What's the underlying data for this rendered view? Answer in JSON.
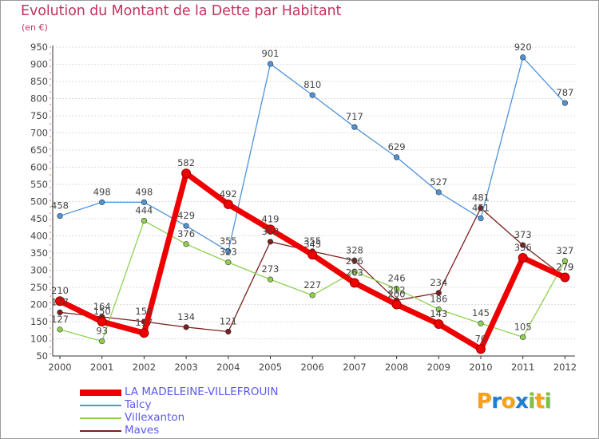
{
  "header": {
    "title": "Evolution du Montant de la Dette par Habitant",
    "subtitle": "(en €)"
  },
  "brand": {
    "letters": [
      "P",
      "r",
      "o",
      "x",
      "i",
      "t",
      "i"
    ],
    "colors": [
      "#f5a313",
      "#1e7fd1",
      "#f5a313",
      "#1e7fd1",
      "#7cc23b",
      "#f5a313",
      "#7cc23b"
    ]
  },
  "chart_data": {
    "type": "line",
    "x": [
      "2000",
      "2001",
      "2002",
      "2003",
      "2004",
      "2005",
      "2006",
      "2007",
      "2008",
      "2009",
      "2010",
      "2011",
      "2012"
    ],
    "ylim": [
      50,
      950
    ],
    "yticks": [
      50,
      100,
      150,
      200,
      250,
      300,
      350,
      400,
      450,
      500,
      550,
      600,
      650,
      700,
      750,
      800,
      850,
      900,
      950
    ],
    "grid": "horizontal dashed",
    "legend_position": "bottom-left",
    "series": [
      {
        "name": "LA MADELEINE-VILLEFROUIN",
        "color": "#ee0000",
        "values": [
          210,
          150,
          117,
          582,
          492,
          419,
          345,
          263,
          200,
          143,
          70,
          336,
          279
        ],
        "labels": [
          "210",
          "150",
          "117",
          "582",
          "492",
          "419",
          "345",
          "263",
          "200",
          "143",
          "70",
          "336",
          "279"
        ]
      },
      {
        "name": "Talcy",
        "color": "#4f93d8",
        "values": [
          458,
          498,
          498,
          429,
          355,
          901,
          810,
          717,
          629,
          527,
          451,
          920,
          787
        ],
        "labels": [
          "458",
          "498",
          "498",
          "429",
          "355",
          "901",
          "810",
          "717",
          "629",
          "527",
          "451",
          "920",
          "787"
        ]
      },
      {
        "name": "Villexanton",
        "color": "#8fd14f",
        "values": [
          127,
          93,
          444,
          376,
          323,
          273,
          227,
          296,
          246,
          186,
          145,
          105,
          327
        ],
        "labels": [
          "127",
          "93",
          "444",
          "376",
          "323",
          "273",
          "227",
          "296",
          "246",
          "186",
          "145",
          "105",
          "327"
        ]
      },
      {
        "name": "Maves",
        "color": "#7a1f1f",
        "values": [
          177,
          164,
          150,
          134,
          121,
          383,
          355,
          328,
          212,
          234,
          481,
          373,
          279
        ],
        "labels": [
          "177",
          "164",
          "150",
          "134",
          "121",
          "383",
          "355",
          "328",
          "212",
          "234",
          "481",
          "373",
          "279"
        ]
      }
    ]
  }
}
